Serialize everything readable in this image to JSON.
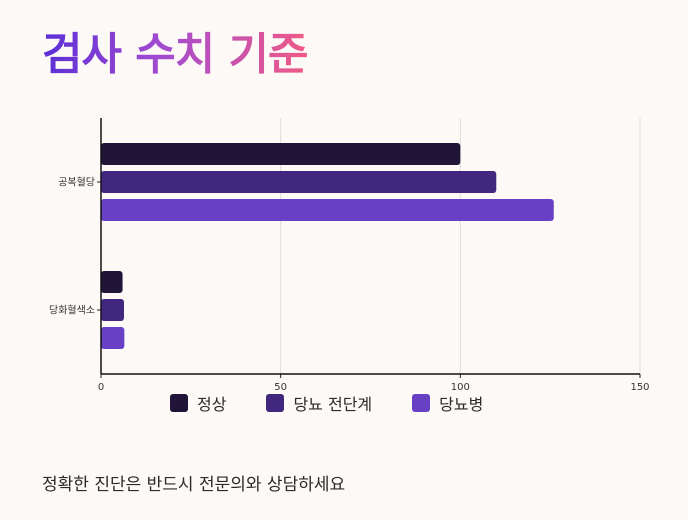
{
  "title": "검사 수치 기준",
  "footnote": "정확한 진단은 반드시 전문의와 상담하세요",
  "chart_data": {
    "type": "bar",
    "orientation": "horizontal",
    "categories": [
      "공복혈당",
      "당화혈색소"
    ],
    "series": [
      {
        "name": "정상",
        "values": [
          100,
          6.0
        ],
        "color": "#201538"
      },
      {
        "name": "당뇨 전단계",
        "values": [
          110,
          6.4
        ],
        "color": "#41277d"
      },
      {
        "name": "당뇨병",
        "values": [
          126,
          6.5
        ],
        "color": "#6740c4"
      }
    ],
    "xlim": [
      0,
      150
    ],
    "xticks": [
      0,
      50,
      100,
      150
    ],
    "grid": true,
    "legend_position": "bottom"
  }
}
